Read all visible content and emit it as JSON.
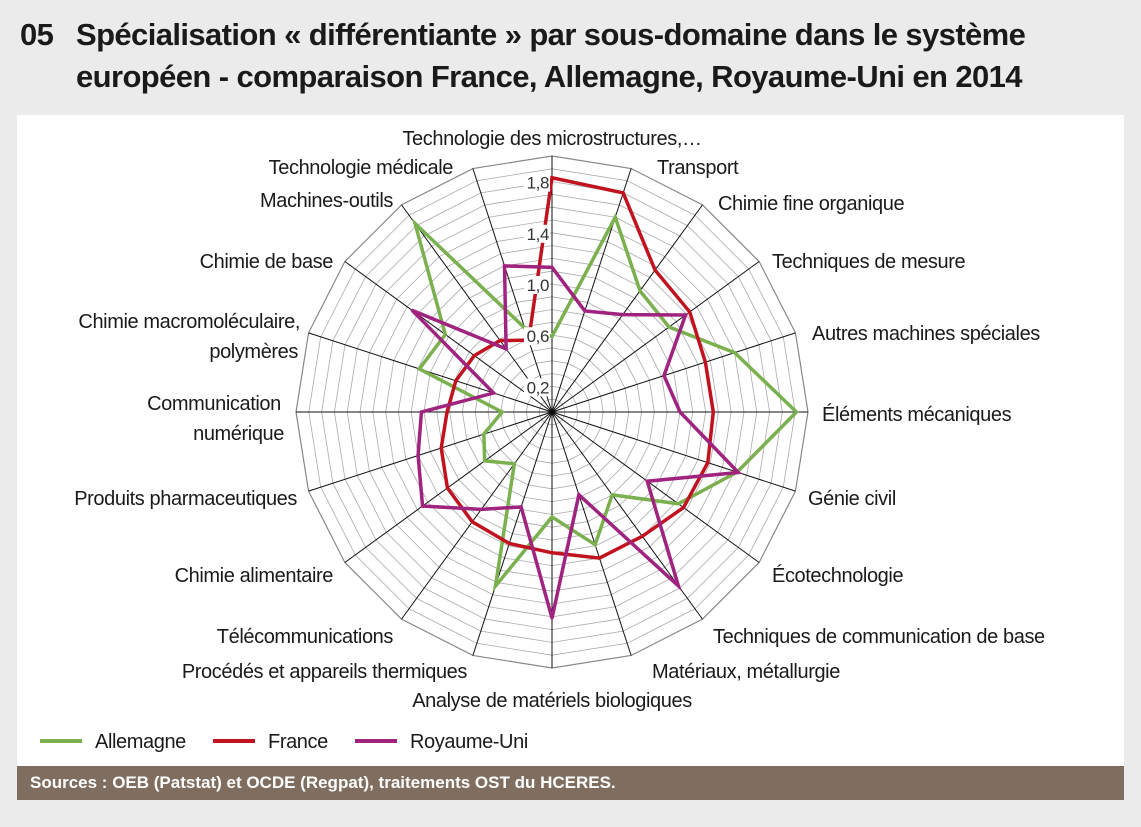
{
  "title": {
    "number": "05",
    "line1": "Spécialisation « différentiante » par sous-domaine dans le système",
    "line2": "européen - comparaison France, Allemagne, Royaume-Uni en 2014"
  },
  "source": "Sources : OEB (Patstat) et OCDE (Regpat), traitements OST du HCERES.",
  "colors": {
    "Allemagne": "#7ab04e",
    "France": "#c1121f",
    "Royaume-Uni": "#a0237f"
  },
  "chart_data": {
    "type": "radar",
    "title": "Spécialisation « différentiante » par sous-domaine dans le système européen - comparaison France, Allemagne, Royaume-Uni en 2014",
    "range": [
      0,
      2.0
    ],
    "ring_step": 0.1,
    "tick_labels": [
      "0,2",
      "0,6",
      "1,0",
      "1,4",
      "1,8"
    ],
    "tick_values": [
      0.2,
      0.6,
      1.0,
      1.4,
      1.8
    ],
    "legend_position": "bottom-left",
    "categories": [
      "Technologie des microstructures,…",
      "Transport",
      "Chimie fine organique",
      "Techniques de mesure",
      "Autres machines spéciales",
      "Éléments mécaniques",
      "Génie civil",
      "Écotechnologie",
      "Techniques de communication de base",
      "Matériaux, métallurgie",
      "Analyse de matériels biologiques",
      "Procédés et appareils thermiques",
      "Télécommunications",
      "Chimie alimentaire",
      "Produits pharmaceutiques",
      "Communication numérique",
      "Chimie macromoléculaire, polymères",
      "Chimie de base",
      "Machines-outils",
      "Technologie médicale"
    ],
    "category_label_lines": {
      "c16a": "Chimie macromoléculaire,",
      "c16b": "polymères",
      "c15a": "Communication",
      "c15b": "numérique"
    },
    "series": [
      {
        "name": "Allemagne",
        "values": [
          0.59,
          1.6,
          1.17,
          1.13,
          1.5,
          1.91,
          1.52,
          1.22,
          0.8,
          1.09,
          0.82,
          1.43,
          0.5,
          0.65,
          0.56,
          0.39,
          1.09,
          1.03,
          1.82,
          0.69
        ]
      },
      {
        "name": "France",
        "values": [
          1.83,
          1.8,
          1.37,
          1.33,
          1.26,
          1.26,
          1.28,
          1.27,
          1.2,
          1.2,
          1.1,
          1.08,
          1.06,
          1.01,
          0.91,
          0.82,
          0.79,
          0.75,
          0.69,
          0.59
        ]
      },
      {
        "name": "Royaume-Uni",
        "values": [
          1.13,
          0.83,
          0.94,
          1.29,
          0.92,
          1.0,
          1.53,
          0.92,
          1.68,
          0.68,
          1.61,
          0.78,
          0.94,
          1.25,
          1.1,
          1.02,
          0.48,
          1.35,
          0.61,
          1.2
        ]
      }
    ]
  }
}
